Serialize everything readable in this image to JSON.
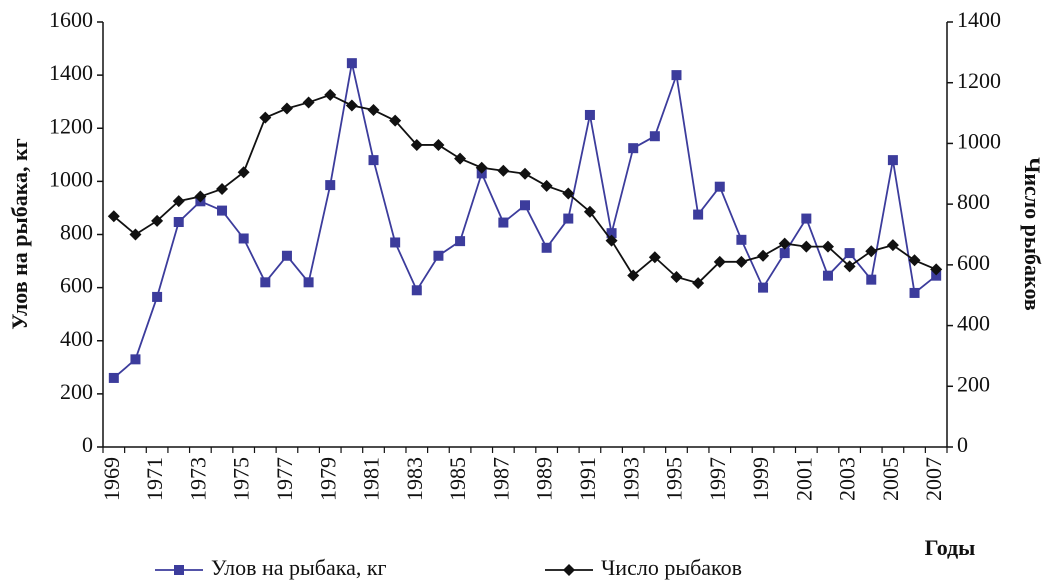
{
  "chart_data": {
    "type": "line",
    "categories": [
      "1969",
      null,
      "1971",
      null,
      "1973",
      null,
      "1975",
      null,
      "1977",
      null,
      "1979",
      null,
      "1981",
      null,
      "1983",
      null,
      "1985",
      null,
      "1987",
      null,
      "1989",
      null,
      "1991",
      null,
      "1993",
      null,
      "1995",
      null,
      "1997",
      null,
      "1999",
      null,
      "2001",
      null,
      "2003",
      null,
      "2005",
      null,
      "2007"
    ],
    "y_label": "Улов на рыбака, кг",
    "y2_label": "Число рыбаков",
    "x_label": "Годы",
    "ylim": [
      0,
      1600
    ],
    "yticks": [
      0,
      200,
      400,
      600,
      800,
      1000,
      1200,
      1400,
      1600
    ],
    "y2lim": [
      0,
      1400
    ],
    "y2ticks": [
      0,
      200,
      400,
      600,
      800,
      1000,
      1200,
      1400
    ],
    "legend": "bottom",
    "series": [
      {
        "name": "Улов на рыбака, кг",
        "color": "#3c3c9c",
        "marker": "square",
        "values": [
          260,
          330,
          565,
          847,
          925,
          890,
          785,
          620,
          720,
          620,
          986,
          1445,
          1080,
          770,
          590,
          720,
          775,
          1030,
          845,
          910,
          750,
          860,
          1250,
          805,
          1125,
          1170,
          1400,
          875,
          980,
          780,
          600,
          730,
          860,
          645,
          730,
          630,
          1080,
          580,
          645
        ]
      },
      {
        "name": "Число рыбаков",
        "color": "#111111",
        "marker": "diamond",
        "axis": "y2",
        "values": [
          760,
          700,
          745,
          810,
          825,
          850,
          905,
          1085,
          1115,
          1135,
          1160,
          1125,
          1110,
          1075,
          995,
          995,
          950,
          920,
          910,
          900,
          860,
          835,
          775,
          680,
          565,
          625,
          560,
          540,
          610,
          610,
          630,
          670,
          660,
          660,
          595,
          645,
          665,
          615,
          585
        ]
      }
    ]
  }
}
